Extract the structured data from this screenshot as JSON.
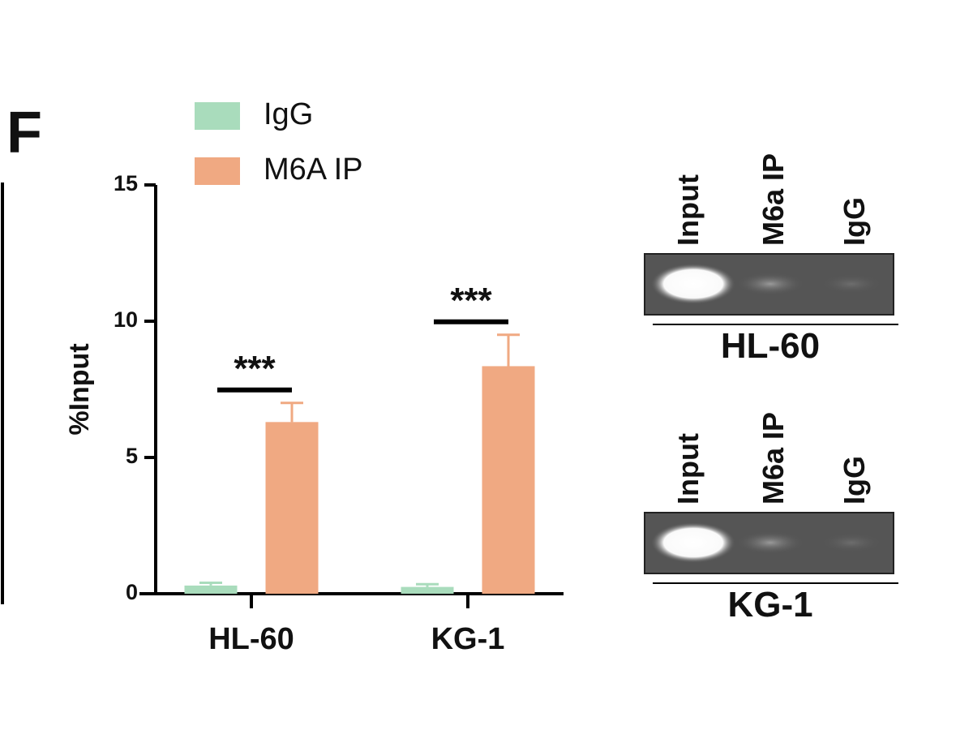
{
  "panel_label": "F",
  "chart_data": {
    "type": "bar",
    "y_label": "%Input",
    "categories": [
      "HL-60",
      "KG-1"
    ],
    "series": [
      {
        "name": "IgG",
        "color": "#a9dcbc",
        "values": [
          0.3,
          0.25
        ],
        "errors": [
          0.1,
          0.1
        ]
      },
      {
        "name": "M6A IP",
        "color": "#f0a982",
        "values": [
          6.3,
          8.35
        ],
        "errors": [
          0.7,
          1.15
        ]
      }
    ],
    "significance": [
      "***",
      "***"
    ],
    "ylim": [
      0,
      15
    ],
    "yticks": [
      0,
      5,
      10,
      15
    ]
  },
  "gels": [
    {
      "name": "HL-60",
      "lanes": [
        "Input",
        "M6a IP",
        "IgG"
      ]
    },
    {
      "name": "KG-1",
      "lanes": [
        "Input",
        "M6a IP",
        "IgG"
      ]
    }
  ]
}
